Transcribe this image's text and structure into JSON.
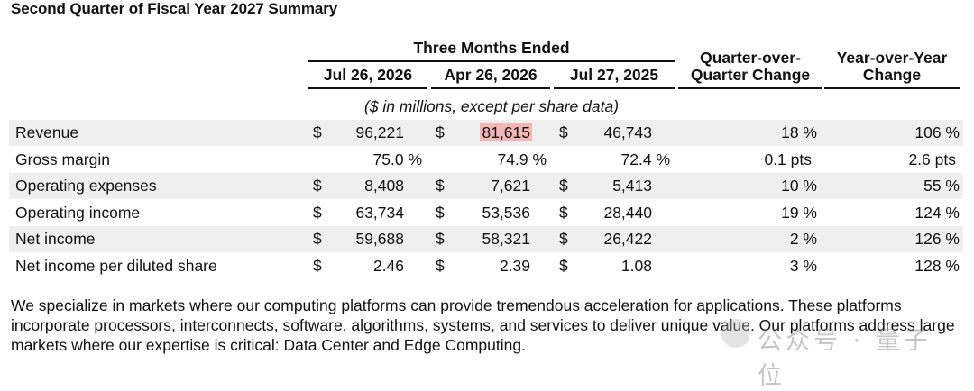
{
  "title": "Second Quarter of Fiscal Year 2027 Summary",
  "header": {
    "group": "Three Months Ended",
    "col1": "Jul 26, 2026",
    "col2": "Apr 26, 2026",
    "col3": "Jul 27, 2025",
    "qoq_line1": "Quarter-over-",
    "qoq_line2": "Quarter Change",
    "yoy_line1": "Year-over-Year",
    "yoy_line2": "Change"
  },
  "units": "($ in millions, except per share data)",
  "rows": [
    {
      "label": "Revenue",
      "d1": "$",
      "v1": "96,221",
      "d2": "$",
      "v2": "81,615",
      "d3": "$",
      "v3": "46,743",
      "qoq": "18 %",
      "yoy": "106 %"
    },
    {
      "label": "Gross margin",
      "d1": "",
      "v1": "75.0 %",
      "d2": "",
      "v2": "74.9 %",
      "d3": "",
      "v3": "72.4 %",
      "qoq": "0.1 pts",
      "yoy": "2.6 pts"
    },
    {
      "label": "Operating expenses",
      "d1": "$",
      "v1": "8,408",
      "d2": "$",
      "v2": "7,621",
      "d3": "$",
      "v3": "5,413",
      "qoq": "10 %",
      "yoy": "55 %"
    },
    {
      "label": "Operating income",
      "d1": "$",
      "v1": "63,734",
      "d2": "$",
      "v2": "53,536",
      "d3": "$",
      "v3": "28,440",
      "qoq": "19 %",
      "yoy": "124 %"
    },
    {
      "label": "Net income",
      "d1": "$",
      "v1": "59,688",
      "d2": "$",
      "v2": "58,321",
      "d3": "$",
      "v3": "26,422",
      "qoq": "2 %",
      "yoy": "126 %"
    },
    {
      "label": "Net income per diluted share",
      "d1": "$",
      "v1": "2.46",
      "d2": "$",
      "v2": "2.39",
      "d3": "$",
      "v3": "1.08",
      "qoq": "3 %",
      "yoy": "128 %"
    }
  ],
  "paragraph": "We specialize in markets where our computing platforms can provide tremendous acceleration for applications. These platforms incorporate processors, interconnects, software, algorithms, systems, and services to deliver unique value. Our platforms address large markets where our expertise is critical: Data Center and Edge Computing.",
  "highlight_color": "#f3b5b5",
  "watermark": {
    "text": "公众号 · 量子位",
    "icon": "wechat-icon"
  }
}
